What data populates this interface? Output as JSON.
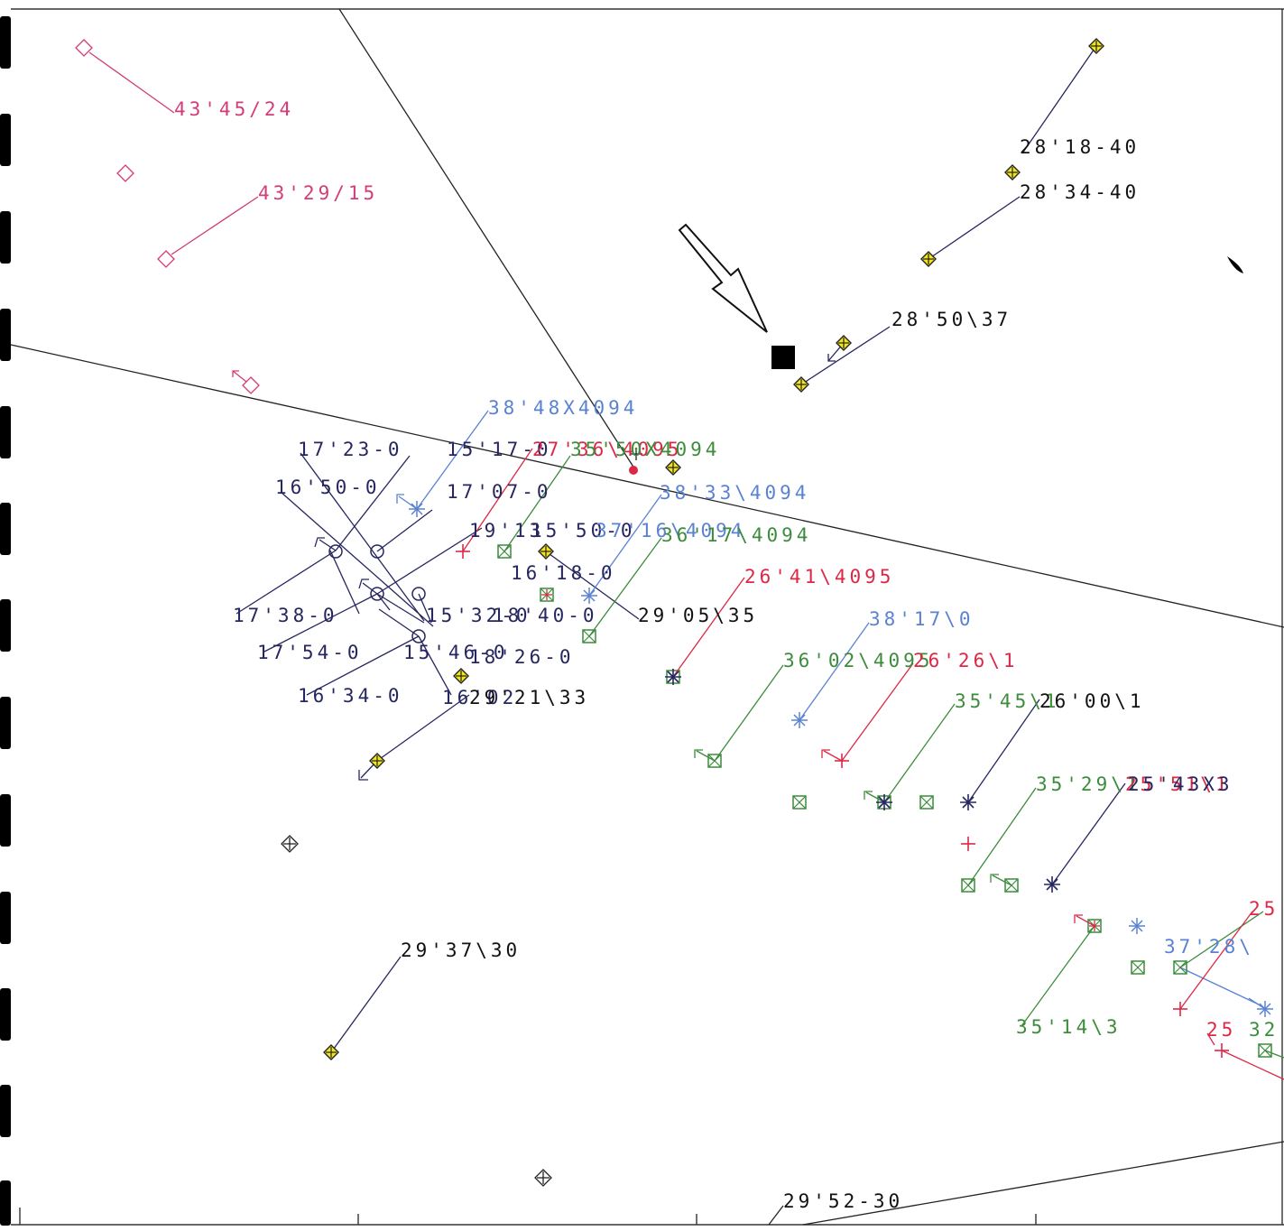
{
  "colors": {
    "magenta": "#d23c78",
    "blue": "#5a82d2",
    "green": "#3c8c3c",
    "red": "#dc2846",
    "navy": "#262660",
    "black": "#111111",
    "marker_fill": "#f2e41e"
  },
  "annotations": {
    "a1": "43'45/24",
    "a2": "43'29/15",
    "a3": "28'18-40",
    "a4": "28'34-40",
    "a5": "28'50\\37",
    "a6": "38'48X4094",
    "a7": "17'23-0",
    "a8": "15'17-0",
    "a9": "27'36\\4095",
    "a10": "35'50X4094",
    "a11": "38'33\\4094",
    "a12": "16'50-0",
    "a13": "17'07-0",
    "a14": "19'13",
    "a15": "15'50-0",
    "a16": "37'16\\4094",
    "a17": "36'17\\4094",
    "a18": "16'18-0",
    "a19": "26'41\\4095",
    "a20": "17'38-0",
    "a21": "15'32-0",
    "a22": "18'40-0",
    "a23": "29'05\\35",
    "a24": "38'17\\0",
    "a25": "17'54-0",
    "a26": "15'46-0",
    "a27": "18'26-0",
    "a28": "36'02\\4095",
    "a29": "26'26\\1",
    "a30": "16'34-0",
    "a31": "16'02",
    "a32": "29'21\\33",
    "a33": "35'45\\1",
    "a34": "26'00\\1",
    "a35": "35'29\\1",
    "a36": "25'51\\1",
    "a37": "25'43X3",
    "a38": "29'37\\30",
    "a39": "25",
    "a40": "37'28\\",
    "a41": "35'14\\3",
    "a42": "25",
    "a43": "32",
    "a44": "29'52-30"
  }
}
